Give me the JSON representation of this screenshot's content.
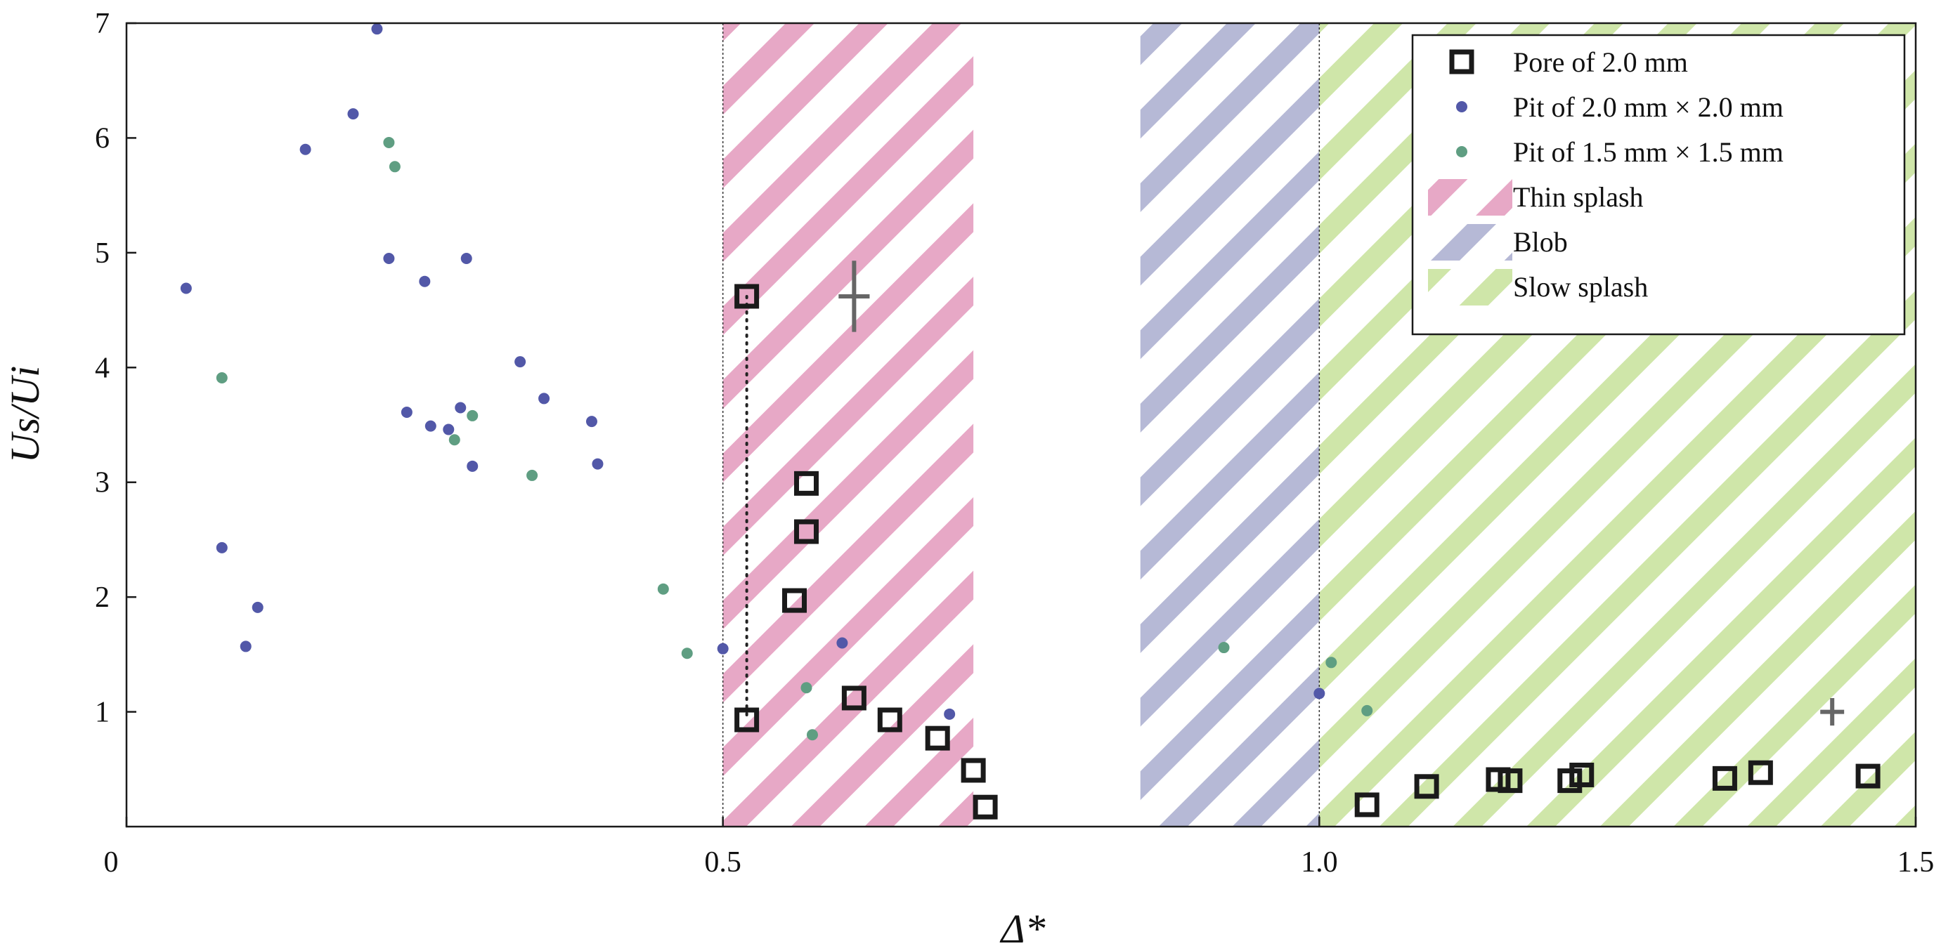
{
  "chart_data": {
    "type": "scatter",
    "xlabel": "Δ*",
    "ylabel": "Us/Ui",
    "xlim": [
      0,
      1.5
    ],
    "ylim": [
      0,
      7
    ],
    "x_ticks": [
      "0",
      "0.5",
      "1.0",
      "1.5"
    ],
    "y_ticks": [
      "1",
      "2",
      "3",
      "4",
      "5",
      "6",
      "7"
    ],
    "grid": false,
    "legend_position": "top-right",
    "regions": [
      {
        "name": "Thin splash",
        "x_range": [
          0.5,
          0.71
        ],
        "color": "#e7a8c6",
        "pattern": "diagonal-hatch"
      },
      {
        "name": "Blob",
        "x_range": [
          0.85,
          1.0
        ],
        "color": "#b6b9d6",
        "pattern": "diagonal-hatch"
      },
      {
        "name": "Slow splash",
        "x_range": [
          1.0,
          1.5
        ],
        "color": "#cfe6a9",
        "pattern": "diagonal-hatch"
      }
    ],
    "series": [
      {
        "name": "Pore of 2.0 mm",
        "marker": "open-square",
        "color": "#1a1a1a",
        "x": [
          0.52,
          0.52,
          0.57,
          0.57,
          0.56,
          0.61,
          0.64,
          0.68,
          0.71,
          0.72,
          1.04,
          1.09,
          1.15,
          1.16,
          1.21,
          1.22,
          1.34,
          1.37,
          1.46
        ],
        "y": [
          4.62,
          0.93,
          2.99,
          2.57,
          1.97,
          1.12,
          0.93,
          0.77,
          0.49,
          0.17,
          0.19,
          0.35,
          0.41,
          0.4,
          0.4,
          0.45,
          0.42,
          0.47,
          0.44
        ]
      },
      {
        "name": "Pit of 2.0 mm × 2.0 mm",
        "marker": "dot",
        "color": "#5258a8",
        "x": [
          0.05,
          0.08,
          0.1,
          0.11,
          0.15,
          0.19,
          0.21,
          0.22,
          0.235,
          0.25,
          0.255,
          0.27,
          0.28,
          0.285,
          0.29,
          0.33,
          0.35,
          0.39,
          0.395,
          0.5,
          0.6,
          0.69,
          1.0
        ],
        "y": [
          4.69,
          2.43,
          1.57,
          1.91,
          5.9,
          6.21,
          6.95,
          4.95,
          3.61,
          4.75,
          3.49,
          3.46,
          3.65,
          4.95,
          3.14,
          4.05,
          3.73,
          3.53,
          3.16,
          1.55,
          1.6,
          0.98,
          1.16
        ]
      },
      {
        "name": "Pit of 1.5 mm × 1.5 mm",
        "marker": "dot",
        "color": "#5f9e82",
        "x": [
          0.08,
          0.22,
          0.225,
          0.275,
          0.29,
          0.34,
          0.45,
          0.47,
          0.57,
          0.575,
          0.92,
          1.01,
          1.04
        ],
        "y": [
          3.91,
          5.96,
          5.75,
          3.37,
          3.58,
          3.06,
          2.07,
          1.51,
          1.21,
          0.8,
          1.56,
          1.43,
          1.01
        ]
      }
    ],
    "error_bars": [
      {
        "x": 0.61,
        "y": 4.62,
        "dx": 0.013,
        "dy": 0.31
      },
      {
        "x": 1.43,
        "y": 1.0,
        "dx": 0.01,
        "dy": 0.12
      }
    ]
  }
}
